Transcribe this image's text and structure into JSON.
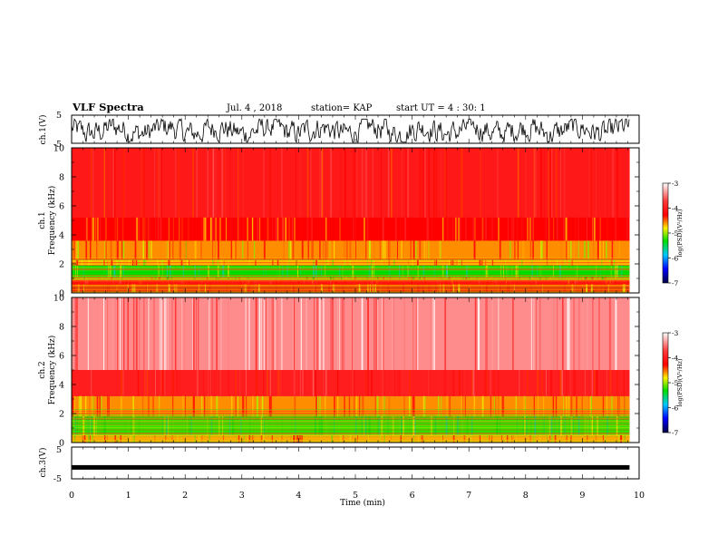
{
  "header": {
    "title": "VLF Spectra",
    "date": "Jul. 4 , 2018",
    "station": "station= KAP",
    "start_ut": "start UT = 4 : 30: 1"
  },
  "chart_data": [
    {
      "type": "line",
      "name": "ch1-waveform",
      "ylabel": "ch.1(V)",
      "ylim": [
        -5,
        5
      ],
      "yticks": [
        "5",
        "-5"
      ],
      "xlim": [
        0,
        10
      ],
      "x_extent_min": 9.83,
      "signal": "noisy waveform roughly between -4.5 and 3.5 V"
    },
    {
      "type": "heatmap",
      "name": "ch1-spectrogram",
      "ylabel": "ch.1\nFrequency (kHz)",
      "ylim": [
        0,
        10
      ],
      "yticks": [
        "0",
        "2",
        "4",
        "6",
        "8",
        "10"
      ],
      "xlim": [
        0,
        10
      ],
      "x_extent_min": 9.83,
      "z_range": [
        -7,
        -3
      ],
      "bands": [
        {
          "f_low": 0.0,
          "f_high": 0.6,
          "log_psd": -4.3
        },
        {
          "f_low": 0.6,
          "f_high": 0.9,
          "log_psd": -4.0
        },
        {
          "f_low": 0.9,
          "f_high": 1.1,
          "log_psd": -4.8
        },
        {
          "f_low": 1.1,
          "f_high": 1.9,
          "log_psd": -5.2
        },
        {
          "f_low": 1.9,
          "f_high": 2.3,
          "log_psd": -4.6
        },
        {
          "f_low": 2.3,
          "f_high": 3.6,
          "log_psd": -4.5
        },
        {
          "f_low": 3.6,
          "f_high": 5.2,
          "log_psd": -4.2
        },
        {
          "f_low": 5.2,
          "f_high": 10.0,
          "log_psd": -3.95
        }
      ],
      "colorbar": {
        "ticks": [
          "-3",
          "-4",
          "-5",
          "-6",
          "-7"
        ],
        "label": "log(PSD)(V²/Hz)"
      }
    },
    {
      "type": "heatmap",
      "name": "ch2-spectrogram",
      "ylabel": "ch.2\nFrequency (kHz)",
      "ylim": [
        0,
        10
      ],
      "yticks": [
        "0",
        "2",
        "4",
        "6",
        "8",
        "10"
      ],
      "xlim": [
        0,
        10
      ],
      "x_extent_min": 9.83,
      "z_range": [
        -7,
        -3
      ],
      "bands": [
        {
          "f_low": 0.0,
          "f_high": 0.5,
          "log_psd": -4.6
        },
        {
          "f_low": 0.5,
          "f_high": 1.8,
          "log_psd": -5.1
        },
        {
          "f_low": 1.8,
          "f_high": 3.2,
          "log_psd": -4.5
        },
        {
          "f_low": 3.2,
          "f_high": 5.0,
          "log_psd": -3.9
        },
        {
          "f_low": 5.0,
          "f_high": 10.0,
          "log_psd": -3.35
        }
      ],
      "colorbar": {
        "ticks": [
          "-3",
          "-4",
          "-5",
          "-6",
          "-7"
        ],
        "label": "log(PSD)(V²/Hz)"
      }
    },
    {
      "type": "line",
      "name": "ch3-waveform",
      "ylabel": "ch.3(V)",
      "ylim": [
        -5,
        5
      ],
      "yticks": [
        "5",
        "-5"
      ],
      "xlim": [
        0,
        10
      ],
      "x_extent_min": 9.83,
      "level_v": -1.4,
      "xlabel": "Time (min)",
      "xticks": [
        "0",
        "1",
        "2",
        "3",
        "4",
        "5",
        "6",
        "7",
        "8",
        "9",
        "10"
      ]
    }
  ]
}
